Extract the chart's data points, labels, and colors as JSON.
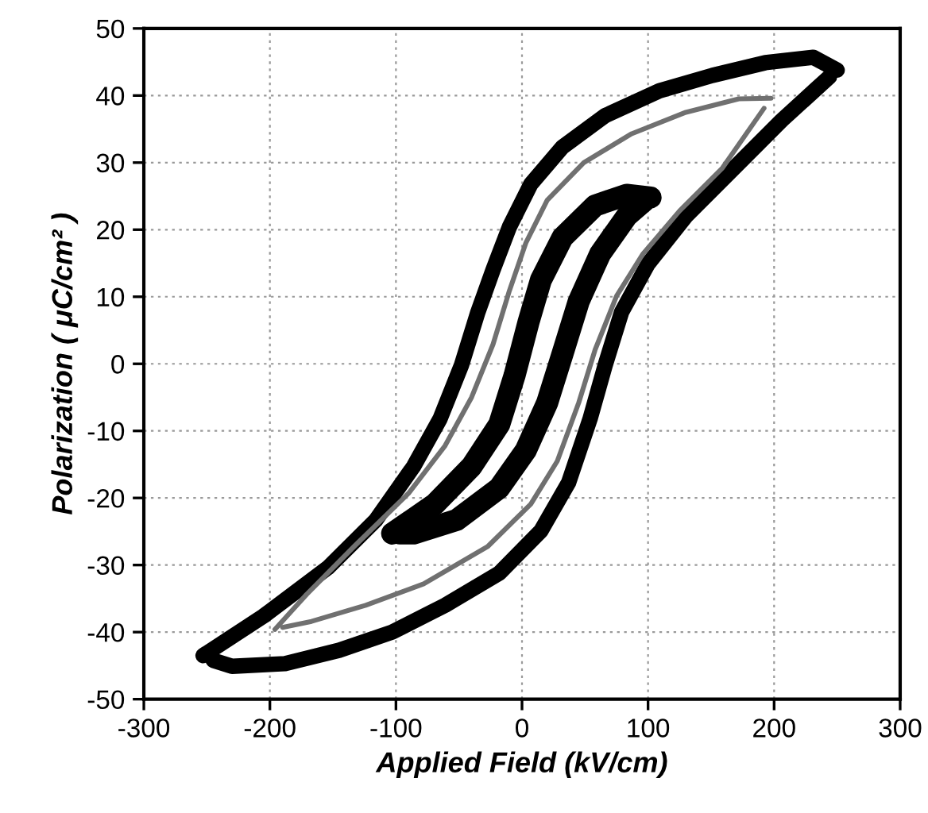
{
  "chart_data": {
    "type": "line",
    "xlabel": "Applied Field (kV/cm)",
    "ylabel": "Polarization ( μC/cm² )",
    "xlim": [
      -300,
      300
    ],
    "xticks": [
      -300,
      -200,
      -100,
      0,
      100,
      200,
      300
    ],
    "ylim": [
      -50,
      50
    ],
    "yticks": [
      -50,
      -40,
      -30,
      -20,
      -10,
      0,
      10,
      20,
      30,
      40,
      50
    ],
    "grid": true,
    "legend": false,
    "marker": "none",
    "line_style": "solid",
    "series": [
      {
        "color": "#000000",
        "x": [
          -253,
          -205,
          -154,
          -116,
          -86,
          -65,
          -48,
          -35,
          -23,
          -10,
          7,
          32,
          66,
          109,
          151,
          193,
          231,
          250
        ],
        "values": [
          -43.5,
          -37.6,
          -30.4,
          -23.3,
          -15.3,
          -8.2,
          -0.2,
          7.7,
          14,
          20.4,
          26.8,
          32.3,
          37,
          40.7,
          43,
          44.9,
          45.7,
          43.8
        ]
      },
      {
        "color": "#000000",
        "x": [
          -245,
          -230,
          -188,
          -145,
          -103,
          -61,
          -18,
          15,
          37,
          54,
          66,
          79,
          100,
          130,
          164,
          206,
          244
        ],
        "values": [
          -44.2,
          -45.1,
          -44.7,
          -42.7,
          -40,
          -36,
          -31.2,
          -24.9,
          -17.7,
          -8.2,
          -0.2,
          7.7,
          14.9,
          22,
          28.4,
          36.3,
          42.8
        ]
      },
      {
        "color": "#707070",
        "x": [
          -196,
          -171,
          -133,
          -90,
          -61,
          -40,
          -23,
          -10,
          3,
          20,
          49,
          87,
          130,
          172,
          197.5
        ],
        "values": [
          -39.6,
          -34.4,
          -27.2,
          -19.3,
          -12.2,
          -5,
          2.9,
          10.9,
          18,
          24.4,
          30,
          34.3,
          37.5,
          39.5,
          39.6
        ]
      },
      {
        "color": "#707070",
        "x": [
          -190,
          -167,
          -124,
          -78,
          -27,
          7,
          28,
          45,
          58,
          75,
          96,
          125,
          159,
          192
        ],
        "values": [
          -39.3,
          -38.4,
          -36,
          -32.8,
          -27.2,
          -20.9,
          -14.5,
          -5.8,
          2.1,
          10.1,
          16.4,
          22.8,
          29.2,
          38.1
        ]
      },
      {
        "color": "#000000",
        "x": [
          -103,
          -69,
          -40,
          -18,
          -6,
          5,
          15,
          32,
          58,
          83,
          102
        ],
        "values": [
          -25.3,
          -20.9,
          -15.3,
          -9,
          -1.8,
          6.1,
          12.5,
          18.8,
          23.6,
          25.2,
          24.8
        ]
      },
      {
        "color": "#000000",
        "x": [
          -97,
          -86,
          -52,
          -18,
          3,
          20,
          32,
          45,
          62,
          83,
          97
        ],
        "values": [
          -25.3,
          -25.3,
          -23.3,
          -18.5,
          -12.9,
          -5.8,
          1.4,
          9.3,
          16.4,
          22,
          24.3
        ]
      }
    ]
  }
}
